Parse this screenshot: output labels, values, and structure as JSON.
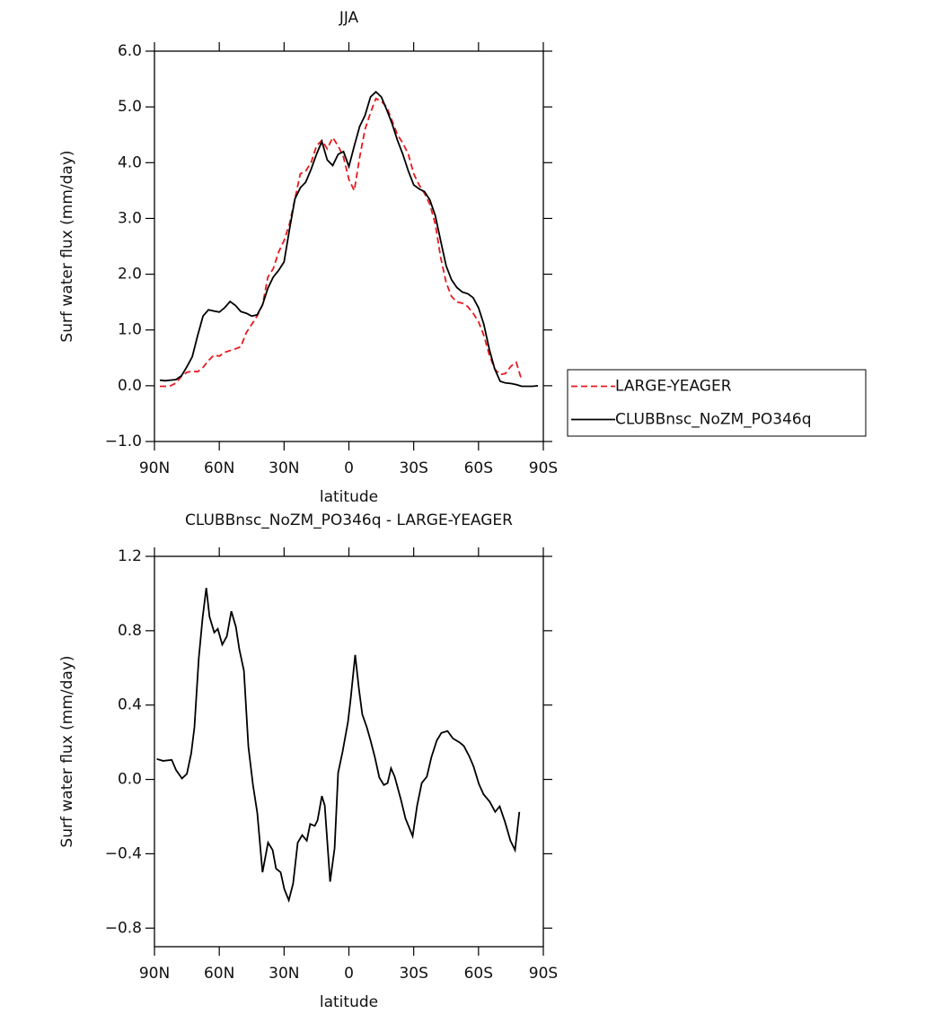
{
  "chart_data": [
    {
      "type": "line",
      "title": "JJA",
      "xlabel": "latitude",
      "ylabel": "Surf water flux (mm/day)",
      "xlim": [
        90,
        -90
      ],
      "ylim": [
        -1,
        6
      ],
      "xticks": [
        {
          "value": 90,
          "label": "90N"
        },
        {
          "value": 60,
          "label": "60N"
        },
        {
          "value": 30,
          "label": "30N"
        },
        0,
        {
          "value": -30,
          "label": "30S"
        },
        {
          "value": -60,
          "label": "60S"
        },
        {
          "value": -90,
          "label": "90S"
        }
      ],
      "yticks": [
        {
          "value": -1,
          "label": "−1.0"
        },
        {
          "value": 0,
          "label": "0.0"
        },
        {
          "value": 1,
          "label": "1.0"
        },
        {
          "value": 2,
          "label": "2.0"
        },
        {
          "value": 3,
          "label": "3.0"
        },
        {
          "value": 4,
          "label": "4.0"
        },
        {
          "value": 5,
          "label": "5.0"
        },
        {
          "value": 6,
          "label": "6.0"
        }
      ],
      "legend": "right",
      "x": [
        87.5,
        85,
        82.5,
        80,
        77.5,
        75,
        72.5,
        70,
        67.5,
        65,
        62.5,
        60,
        57.5,
        55,
        52.5,
        50,
        47.5,
        45,
        42.5,
        40,
        37.5,
        35,
        32.5,
        30,
        27.5,
        25,
        22.5,
        20,
        17.5,
        15,
        12.5,
        10,
        7.5,
        5,
        2.5,
        0,
        -2.5,
        -5,
        -7.5,
        -10,
        -12.5,
        -15,
        -17.5,
        -20,
        -22.5,
        -25,
        -27.5,
        -30,
        -32.5,
        -35,
        -37.5,
        -40,
        -42.5,
        -45,
        -47.5,
        -50,
        -52.5,
        -55,
        -57.5,
        -60,
        -62.5,
        -65,
        -67.5,
        -70,
        -72.5,
        -75,
        -77.5,
        -80,
        -82.5,
        -85,
        -87.5
      ],
      "series": [
        {
          "name": "LARGE-YEAGER",
          "color": "#e8191c",
          "line_style": "dashed",
          "values": [
            -0.01,
            -0.01,
            0.0,
            0.05,
            0.17,
            0.24,
            0.26,
            0.25,
            0.33,
            0.45,
            0.55,
            0.53,
            0.6,
            0.63,
            0.66,
            0.7,
            0.95,
            1.1,
            1.25,
            1.45,
            1.95,
            2.1,
            2.4,
            2.6,
            2.9,
            3.35,
            3.8,
            3.85,
            4.0,
            4.3,
            4.4,
            4.25,
            4.45,
            4.3,
            4.1,
            3.7,
            3.5,
            4.1,
            4.6,
            4.9,
            5.15,
            5.1,
            5.0,
            4.75,
            4.5,
            4.35,
            4.15,
            3.8,
            3.6,
            3.45,
            3.25,
            2.9,
            2.3,
            1.85,
            1.6,
            1.5,
            1.48,
            1.42,
            1.3,
            1.15,
            0.9,
            0.55,
            0.3,
            0.2,
            0.22,
            0.35,
            0.42,
            0.1,
            null,
            null,
            null
          ]
        },
        {
          "name": "CLUBBnsc_NoZM_PO346q",
          "color": "#000000",
          "line_style": "solid",
          "values": [
            0.1,
            0.09,
            0.1,
            0.11,
            0.18,
            0.34,
            0.52,
            0.9,
            1.25,
            1.36,
            1.34,
            1.32,
            1.4,
            1.51,
            1.44,
            1.33,
            1.3,
            1.25,
            1.27,
            1.45,
            1.75,
            1.95,
            2.07,
            2.22,
            2.8,
            3.35,
            3.55,
            3.65,
            3.88,
            4.15,
            4.38,
            4.05,
            3.95,
            4.15,
            4.2,
            3.93,
            4.3,
            4.65,
            4.85,
            5.18,
            5.27,
            5.18,
            4.95,
            4.7,
            4.4,
            4.15,
            3.85,
            3.6,
            3.53,
            3.48,
            3.33,
            3.05,
            2.6,
            2.15,
            1.9,
            1.76,
            1.68,
            1.65,
            1.58,
            1.4,
            1.1,
            0.65,
            0.3,
            0.08,
            0.05,
            0.04,
            0.02,
            -0.01,
            -0.01,
            -0.01,
            0.0
          ]
        }
      ]
    },
    {
      "type": "line",
      "title": "CLUBBnsc_NoZM_PO346q - LARGE-YEAGER",
      "xlabel": "latitude",
      "ylabel": "Surf water flux (mm/day)",
      "xlim": [
        90,
        -90
      ],
      "ylim": [
        -0.9,
        1.2
      ],
      "xticks": [
        {
          "value": 90,
          "label": "90N"
        },
        {
          "value": 60,
          "label": "60N"
        },
        {
          "value": 30,
          "label": "30N"
        },
        0,
        {
          "value": -30,
          "label": "30S"
        },
        {
          "value": -60,
          "label": "60S"
        },
        {
          "value": -90,
          "label": "90S"
        }
      ],
      "yticks": [
        {
          "value": -0.8,
          "label": "−0.8"
        },
        {
          "value": -0.4,
          "label": "−0.4"
        },
        {
          "value": 0,
          "label": "0.0"
        },
        0.4,
        0.8,
        1.2
      ],
      "x": [
        88.9,
        86,
        82,
        80,
        77.3,
        75,
        73,
        71.5,
        69.5,
        67.7,
        66,
        64.5,
        62.3,
        60.7,
        58.6,
        56.5,
        54.4,
        52.3,
        50.7,
        48.6,
        46.5,
        44.4,
        42.4,
        40,
        37.4,
        35.3,
        33.7,
        31.6,
        29.9,
        27.8,
        25.8,
        23.7,
        21.6,
        19.5,
        17.9,
        15.8,
        14.5,
        12.5,
        11.2,
        8.7,
        6.6,
        5,
        2.9,
        0.4,
        -0.8,
        -2.9,
        -4.6,
        -6.2,
        -8.3,
        -10,
        -12,
        -14.1,
        -16.2,
        -17.9,
        -19.5,
        -21.2,
        -24.1,
        -26.2,
        -29.5,
        -31.6,
        -33.7,
        -36.1,
        -38.2,
        -40.7,
        -42.8,
        -45.7,
        -48.2,
        -51.1,
        -53.2,
        -55.7,
        -57.7,
        -60.2,
        -62.3,
        -65.2,
        -67.7,
        -69.8,
        -72.3,
        -74.8,
        -76.9,
        -78.9
      ],
      "series": [
        {
          "color": "#000000",
          "line_style": "solid",
          "values": [
            0.11,
            0.1,
            0.105,
            0.05,
            0.005,
            0.03,
            0.14,
            0.28,
            0.65,
            0.87,
            1.03,
            0.875,
            0.79,
            0.81,
            0.725,
            0.77,
            0.905,
            0.82,
            0.7,
            0.585,
            0.175,
            -0.03,
            -0.18,
            -0.5,
            -0.34,
            -0.38,
            -0.48,
            -0.5,
            -0.59,
            -0.65,
            -0.56,
            -0.34,
            -0.3,
            -0.33,
            -0.24,
            -0.25,
            -0.22,
            -0.09,
            -0.14,
            -0.55,
            -0.37,
            0.035,
            0.15,
            0.31,
            0.43,
            0.67,
            0.49,
            0.35,
            0.28,
            0.21,
            0.12,
            0.01,
            -0.03,
            -0.02,
            0.06,
            0.015,
            -0.11,
            -0.21,
            -0.305,
            -0.14,
            -0.02,
            0.015,
            0.12,
            0.21,
            0.25,
            0.26,
            0.22,
            0.2,
            0.18,
            0.125,
            0.07,
            -0.025,
            -0.08,
            -0.12,
            -0.175,
            -0.145,
            -0.23,
            -0.33,
            -0.38,
            -0.175
          ]
        }
      ]
    }
  ]
}
